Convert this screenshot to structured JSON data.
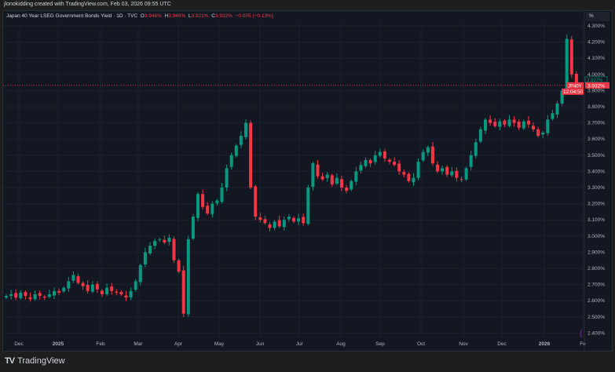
{
  "credit": "jlonokidding created with TradingView.com, Feb 03, 2026 09:55 UTC",
  "legend": {
    "title": "Japan 40 Year LSEG Government Bonds Yield · 1D · TVC",
    "o_label": "O",
    "o": "3.946%",
    "h_label": "H",
    "h": "3.946%",
    "l_label": "L",
    "l": "3.921%",
    "c_label": "C",
    "c": "3.932%",
    "change": "−0.005 (−0.13%)"
  },
  "unit_button": "%",
  "price_tag": {
    "symbol": "JP40Y",
    "price": "3.932%",
    "countdown": "12:04:50",
    "prev": "3.937%"
  },
  "footer": {
    "brand": "TradingView"
  },
  "colors": {
    "up": "#089981",
    "down": "#f23645",
    "bg": "#131722"
  },
  "chart_data": {
    "type": "candlestick",
    "title": "Japan 40 Year LSEG Government Bonds Yield",
    "ylabel": "%",
    "ylim": [
      2.37,
      4.35
    ],
    "yticks": [
      "4.300%",
      "4.200%",
      "4.100%",
      "4.000%",
      "3.900%",
      "3.800%",
      "3.700%",
      "3.600%",
      "3.500%",
      "3.400%",
      "3.300%",
      "3.200%",
      "3.100%",
      "3.000%",
      "2.900%",
      "2.800%",
      "2.700%",
      "2.600%",
      "2.500%",
      "2.400%"
    ],
    "ytick_values": [
      4.3,
      4.2,
      4.1,
      4.0,
      3.9,
      3.8,
      3.7,
      3.6,
      3.5,
      3.4,
      3.3,
      3.2,
      3.1,
      3.0,
      2.9,
      2.8,
      2.7,
      2.6,
      2.5,
      2.4
    ],
    "xticks": [
      "Dec",
      "2025",
      "Feb",
      "Mar",
      "Apr",
      "May",
      "Jun",
      "Jul",
      "Aug",
      "Sep",
      "Oct",
      "Nov",
      "Dec",
      "2026",
      "Fe"
    ],
    "closes": [
      2.63,
      2.64,
      2.62,
      2.65,
      2.63,
      2.61,
      2.64,
      2.63,
      2.62,
      2.64,
      2.66,
      2.65,
      2.68,
      2.72,
      2.76,
      2.71,
      2.69,
      2.66,
      2.7,
      2.67,
      2.64,
      2.68,
      2.66,
      2.65,
      2.64,
      2.62,
      2.66,
      2.72,
      2.82,
      2.9,
      2.94,
      2.97,
      2.98,
      2.96,
      2.99,
      2.85,
      2.78,
      2.52,
      2.98,
      3.12,
      3.26,
      3.18,
      3.14,
      3.2,
      3.22,
      3.3,
      3.42,
      3.5,
      3.56,
      3.62,
      3.7,
      3.3,
      3.12,
      3.1,
      3.08,
      3.05,
      3.09,
      3.06,
      3.1,
      3.12,
      3.09,
      3.11,
      3.08,
      3.3,
      3.45,
      3.37,
      3.35,
      3.38,
      3.32,
      3.36,
      3.3,
      3.28,
      3.34,
      3.4,
      3.44,
      3.47,
      3.45,
      3.5,
      3.52,
      3.48,
      3.46,
      3.44,
      3.4,
      3.38,
      3.34,
      3.36,
      3.46,
      3.52,
      3.55,
      3.45,
      3.4,
      3.42,
      3.38,
      3.4,
      3.36,
      3.35,
      3.42,
      3.5,
      3.58,
      3.66,
      3.72,
      3.7,
      3.68,
      3.71,
      3.69,
      3.72,
      3.7,
      3.67,
      3.71,
      3.69,
      3.66,
      3.62,
      3.64,
      3.72,
      3.76,
      3.82,
      3.9,
      4.22,
      4.0,
      3.93
    ],
    "last_price": 3.932
  }
}
